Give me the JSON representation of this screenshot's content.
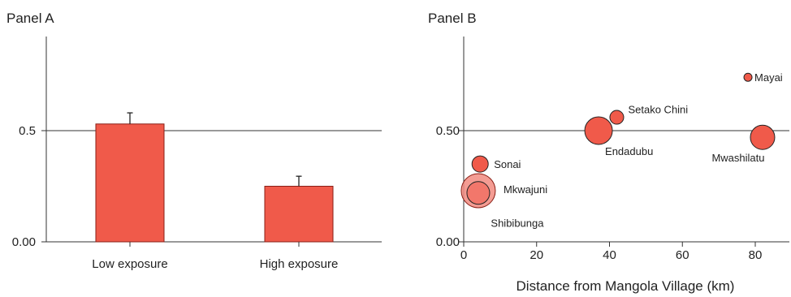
{
  "chart_data": [
    {
      "type": "bar",
      "title": "Panel A",
      "categories": [
        "Low exposure",
        "High exposure"
      ],
      "values": [
        0.53,
        0.25
      ],
      "error": [
        0.05,
        0.045
      ],
      "ylim": [
        0,
        0.74
      ],
      "yticks": [
        {
          "value": 0.0,
          "label": "0.00"
        },
        {
          "value": 0.5,
          "label": "0.5"
        }
      ],
      "reference_line": 0.5,
      "color": "#f05a4a"
    },
    {
      "type": "scatter",
      "title": "Panel B",
      "xlabel": "Distance from Mangola Village (km)",
      "xlim": [
        0,
        90
      ],
      "ylim": [
        0,
        0.74
      ],
      "xticks": [
        0,
        20,
        40,
        60,
        80
      ],
      "yticks": [
        {
          "value": 0.0,
          "label": "0.00"
        },
        {
          "value": 0.5,
          "label": "0.50"
        }
      ],
      "reference_line": 0.5,
      "color": "#f05a4a",
      "points": [
        {
          "name": "Mayai",
          "x": 78,
          "y": 0.74,
          "size": 5
        },
        {
          "name": "Setako Chini",
          "x": 42,
          "y": 0.56,
          "size": 8.5
        },
        {
          "name": "Endadubu",
          "x": 37,
          "y": 0.5,
          "size": 17
        },
        {
          "name": "Mwashilatu",
          "x": 82,
          "y": 0.47,
          "size": 15
        },
        {
          "name": "Sonai",
          "x": 4.5,
          "y": 0.35,
          "size": 10
        },
        {
          "name": "Mkwajuni",
          "x": 4,
          "y": 0.23,
          "size": 21,
          "faded": true
        },
        {
          "name": "Shibibunga",
          "x": 4,
          "y": 0.22,
          "size": 14
        }
      ]
    }
  ]
}
